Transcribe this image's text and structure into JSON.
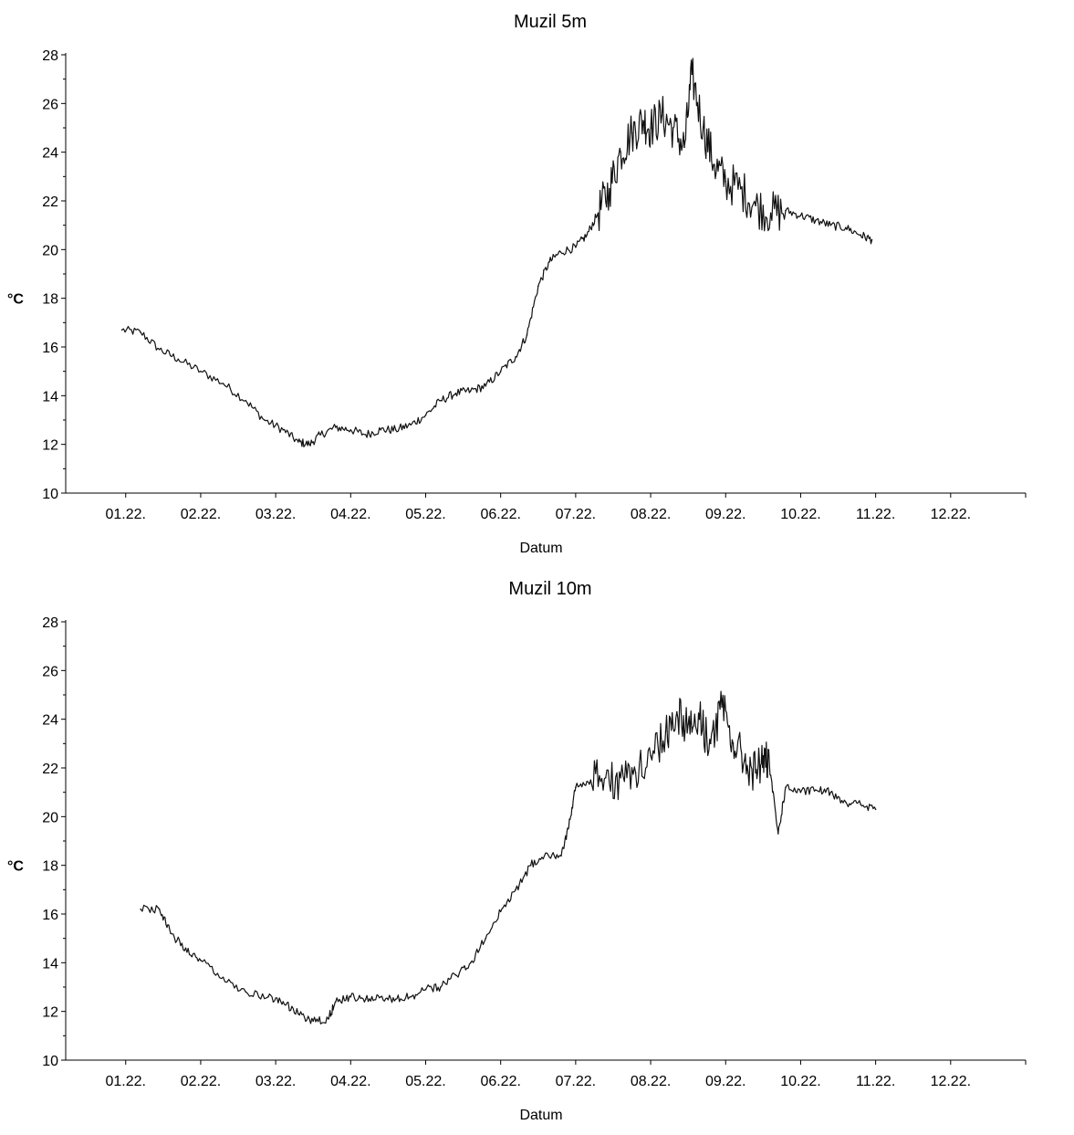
{
  "chart_data": [
    {
      "type": "line",
      "title": "Muzil 5m",
      "xlabel": "Datum",
      "ylabel": "°C",
      "ylim": [
        10,
        28
      ],
      "yticks": [
        10,
        12,
        14,
        16,
        18,
        20,
        22,
        24,
        26,
        28
      ],
      "x_tick_labels": [
        "01.22.",
        "02.22.",
        "03.22.",
        "04.22.",
        "05.22.",
        "06.22.",
        "07.22.",
        "08.22.",
        "09.22.",
        "10.22.",
        "11.22.",
        "12.22."
      ],
      "xlim_month": [
        0.2,
        13.0
      ],
      "line_color": "#111111",
      "series": [
        {
          "x_month": [
            0.95,
            1.2,
            1.45,
            1.7,
            2.0,
            2.3,
            2.6,
            2.85,
            3.1,
            3.3,
            3.45,
            3.6,
            3.8,
            4.0,
            4.2,
            4.4,
            4.6,
            4.8,
            5.0,
            5.2,
            5.4,
            5.6,
            5.8,
            6.0,
            6.2,
            6.35,
            6.5,
            6.65,
            6.8,
            7.0,
            7.15,
            7.3,
            7.45,
            7.6,
            7.75,
            7.9,
            8.0,
            8.15,
            8.3,
            8.45,
            8.55,
            8.7,
            8.85,
            9.0,
            9.2,
            9.4,
            9.6,
            9.8,
            10.0,
            10.2,
            10.4,
            10.6,
            10.8,
            10.95
          ],
          "y": [
            16.7,
            16.6,
            15.9,
            15.5,
            15.0,
            14.5,
            13.8,
            13.0,
            12.6,
            12.1,
            12.0,
            12.4,
            12.7,
            12.6,
            12.4,
            12.6,
            12.6,
            12.8,
            13.2,
            13.8,
            14.1,
            14.2,
            14.4,
            15.0,
            15.6,
            16.5,
            18.5,
            19.5,
            19.9,
            20.1,
            20.6,
            21.5,
            22.5,
            24.0,
            24.8,
            25.3,
            25.0,
            25.5,
            25.0,
            24.2,
            27.2,
            25.0,
            23.5,
            22.8,
            22.5,
            21.8,
            21.5,
            21.6,
            21.4,
            21.2,
            21.0,
            20.9,
            20.6,
            20.4
          ]
        }
      ]
    },
    {
      "type": "line",
      "title": "Muzil 10m",
      "xlabel": "Datum",
      "ylabel": "°C",
      "ylim": [
        10,
        28
      ],
      "yticks": [
        10,
        12,
        14,
        16,
        18,
        20,
        22,
        24,
        26,
        28
      ],
      "x_tick_labels": [
        "01.22.",
        "02.22.",
        "03.22.",
        "04.22.",
        "05.22.",
        "06.22.",
        "07.22.",
        "08.22.",
        "09.22.",
        "10.22.",
        "11.22.",
        "12.22."
      ],
      "xlim_month": [
        0.2,
        13.0
      ],
      "line_color": "#111111",
      "series": [
        {
          "x_month": [
            1.2,
            1.45,
            1.6,
            1.8,
            2.0,
            2.3,
            2.6,
            2.9,
            3.1,
            3.3,
            3.5,
            3.7,
            3.8,
            4.0,
            4.2,
            4.4,
            4.6,
            4.8,
            5.0,
            5.2,
            5.4,
            5.6,
            5.8,
            6.0,
            6.2,
            6.4,
            6.6,
            6.8,
            6.9,
            7.0,
            7.2,
            7.4,
            7.6,
            7.8,
            8.0,
            8.2,
            8.35,
            8.5,
            8.65,
            8.8,
            8.95,
            9.1,
            9.25,
            9.4,
            9.5,
            9.6,
            9.7,
            9.8,
            10.0,
            10.2,
            10.4,
            10.6,
            10.8,
            11.0
          ],
          "y": [
            16.2,
            16.2,
            15.2,
            14.6,
            14.1,
            13.4,
            12.8,
            12.6,
            12.4,
            11.9,
            11.6,
            11.7,
            12.4,
            12.6,
            12.5,
            12.6,
            12.5,
            12.6,
            12.9,
            13.0,
            13.5,
            14.0,
            15.0,
            16.1,
            17.0,
            18.0,
            18.5,
            18.4,
            19.5,
            21.2,
            21.5,
            21.6,
            21.6,
            21.8,
            22.5,
            23.5,
            24.3,
            23.8,
            24.0,
            23.0,
            24.5,
            23.0,
            22.3,
            21.8,
            22.5,
            21.7,
            19.3,
            21.2,
            21.0,
            21.1,
            21.0,
            20.6,
            20.5,
            20.3
          ]
        }
      ]
    }
  ]
}
